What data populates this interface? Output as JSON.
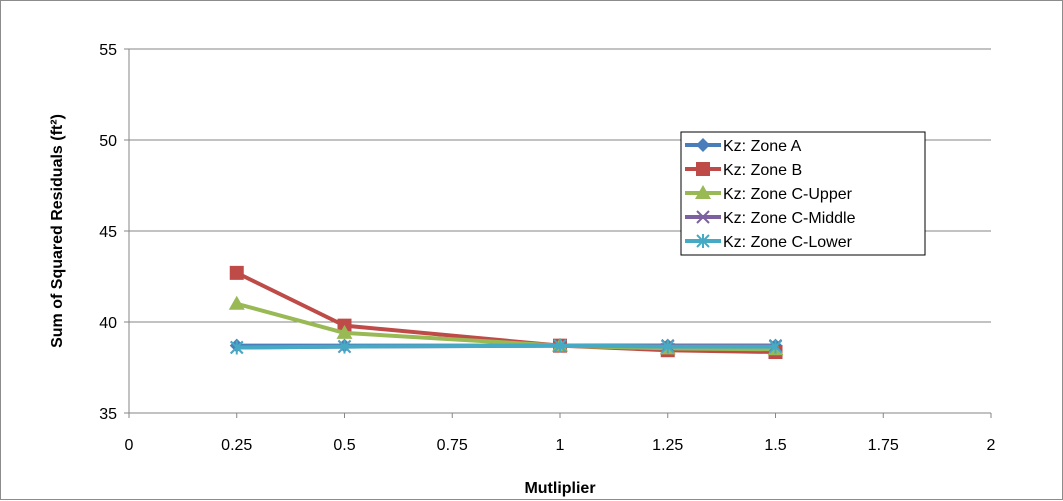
{
  "chart_data": {
    "type": "line",
    "title": "",
    "xlabel": "Mutliplier",
    "ylabel": "Sum of Squared Residuals (ft²)",
    "xlim": [
      0,
      2
    ],
    "ylim": [
      35,
      55
    ],
    "xticks": [
      0,
      0.25,
      0.5,
      0.75,
      1,
      1.25,
      1.5,
      1.75,
      2
    ],
    "yticks": [
      35,
      40,
      45,
      50,
      55
    ],
    "grid": "horizontal",
    "legend_position": "top-right",
    "x": [
      0.25,
      0.5,
      1,
      1.25,
      1.5
    ],
    "series": [
      {
        "name": "Kz: Zone A",
        "values": [
          38.7,
          38.7,
          38.7,
          38.7,
          38.7
        ],
        "color": "#4a7ebb",
        "marker": "diamond"
      },
      {
        "name": "Kz: Zone B",
        "values": [
          42.7,
          39.8,
          38.7,
          38.45,
          38.35
        ],
        "color": "#be4b48",
        "marker": "square"
      },
      {
        "name": "Kz: Zone C-Upper",
        "values": [
          41.0,
          39.4,
          38.7,
          38.55,
          38.5
        ],
        "color": "#98b954",
        "marker": "triangle"
      },
      {
        "name": "Kz: Zone C-Middle",
        "values": [
          38.6,
          38.65,
          38.7,
          38.7,
          38.7
        ],
        "color": "#7d60a0",
        "marker": "x"
      },
      {
        "name": "Kz: Zone C-Lower",
        "values": [
          38.6,
          38.65,
          38.7,
          38.65,
          38.65
        ],
        "color": "#46aac5",
        "marker": "star"
      }
    ]
  }
}
